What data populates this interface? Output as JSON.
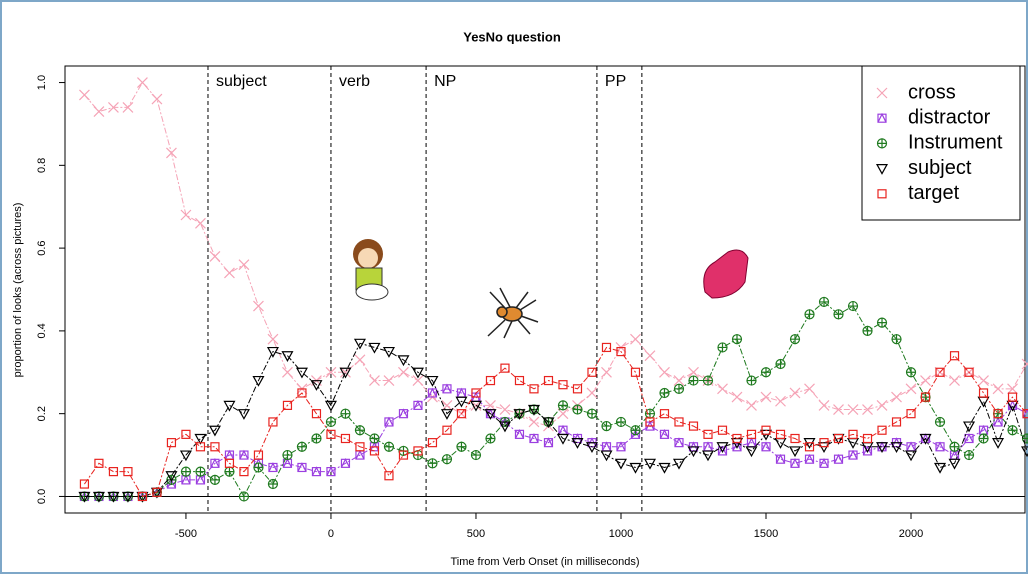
{
  "chart_data": {
    "type": "line",
    "title": "YesNo question",
    "x_label": "Time from Verb Onset (in milliseconds)",
    "y_label": "proportion of looks (across pictures)",
    "xlim": [
      -917,
      2393
    ],
    "ylim": [
      -0.04,
      1.04
    ],
    "xticks": [
      -500,
      0,
      500,
      1000,
      1500,
      2000
    ],
    "yticks": [
      {
        "value": 0,
        "label": "0.0"
      },
      0.2,
      0.4,
      0.6,
      0.8,
      {
        "value": 1,
        "label": "1.0"
      }
    ],
    "legend": "top-right",
    "segments": [
      {
        "label": "subject",
        "start": -424
      },
      {
        "label": "verb",
        "start": 0
      },
      {
        "label": "NP",
        "start": 328
      },
      {
        "label": "PP",
        "start": 917,
        "end": 1072
      }
    ],
    "x": [
      -850,
      -800,
      -750,
      -700,
      -650,
      -600,
      -550,
      -500,
      -450,
      -400,
      -350,
      -300,
      -250,
      -200,
      -150,
      -100,
      -50,
      0,
      50,
      100,
      150,
      200,
      250,
      300,
      350,
      400,
      450,
      500,
      550,
      600,
      650,
      700,
      750,
      800,
      850,
      900,
      950,
      1000,
      1050,
      1100,
      1150,
      1200,
      1250,
      1300,
      1350,
      1400,
      1450,
      1500,
      1550,
      1600,
      1650,
      1700,
      1750,
      1800,
      1850,
      1900,
      1950,
      2000,
      2050,
      2100,
      2150,
      2200,
      2250,
      2300,
      2350,
      2400
    ],
    "series": [
      {
        "name": "cross",
        "color": "#f5a3b6",
        "marker": "x",
        "values": [
          0.97,
          0.93,
          0.94,
          0.94,
          1.0,
          0.96,
          0.83,
          0.68,
          0.66,
          0.58,
          0.54,
          0.56,
          0.46,
          0.38,
          0.3,
          0.26,
          0.28,
          0.3,
          0.3,
          0.33,
          0.28,
          0.28,
          0.3,
          0.28,
          0.24,
          0.22,
          0.2,
          0.22,
          0.22,
          0.21,
          0.2,
          0.18,
          0.17,
          0.2,
          0.22,
          0.25,
          0.3,
          0.36,
          0.38,
          0.34,
          0.3,
          0.28,
          0.3,
          0.28,
          0.26,
          0.24,
          0.22,
          0.24,
          0.23,
          0.25,
          0.26,
          0.22,
          0.21,
          0.21,
          0.21,
          0.22,
          0.24,
          0.26,
          0.28,
          0.3,
          0.28,
          0.3,
          0.28,
          0.26,
          0.26,
          0.32
        ]
      },
      {
        "name": "distractor",
        "color": "#9b3fe0",
        "marker": "boxtri",
        "values": [
          0,
          0,
          0,
          0,
          0,
          0.01,
          0.03,
          0.04,
          0.04,
          0.08,
          0.1,
          0.1,
          0.08,
          0.07,
          0.08,
          0.07,
          0.06,
          0.06,
          0.08,
          0.1,
          0.12,
          0.18,
          0.2,
          0.22,
          0.25,
          0.26,
          0.25,
          0.24,
          0.2,
          0.18,
          0.15,
          0.14,
          0.13,
          0.16,
          0.14,
          0.13,
          0.12,
          0.12,
          0.15,
          0.17,
          0.15,
          0.13,
          0.12,
          0.12,
          0.11,
          0.12,
          0.13,
          0.12,
          0.09,
          0.08,
          0.09,
          0.08,
          0.09,
          0.1,
          0.11,
          0.12,
          0.13,
          0.12,
          0.14,
          0.12,
          0.1,
          0.14,
          0.16,
          0.18,
          0.22,
          0.2
        ]
      },
      {
        "name": "Instrument",
        "color": "#1f7a1f",
        "marker": "circplus",
        "values": [
          0,
          0,
          0,
          0,
          0,
          0.01,
          0.04,
          0.06,
          0.06,
          0.04,
          0.06,
          0,
          0.07,
          0.03,
          0.1,
          0.12,
          0.14,
          0.18,
          0.2,
          0.16,
          0.14,
          0.12,
          0.11,
          0.1,
          0.08,
          0.09,
          0.12,
          0.1,
          0.14,
          0.18,
          0.2,
          0.21,
          0.18,
          0.22,
          0.21,
          0.2,
          0.17,
          0.18,
          0.16,
          0.2,
          0.25,
          0.26,
          0.28,
          0.28,
          0.36,
          0.38,
          0.28,
          0.3,
          0.32,
          0.38,
          0.44,
          0.47,
          0.44,
          0.46,
          0.4,
          0.42,
          0.38,
          0.3,
          0.24,
          0.18,
          0.12,
          0.1,
          0.14,
          0.2,
          0.16,
          0.14
        ]
      },
      {
        "name": "subject",
        "color": "#000000",
        "marker": "tridown",
        "values": [
          0,
          0,
          0,
          0,
          0,
          0.01,
          0.05,
          0.1,
          0.14,
          0.16,
          0.22,
          0.2,
          0.28,
          0.35,
          0.34,
          0.3,
          0.27,
          0.22,
          0.3,
          0.37,
          0.36,
          0.35,
          0.33,
          0.3,
          0.28,
          0.2,
          0.23,
          0.22,
          0.2,
          0.17,
          0.2,
          0.21,
          0.18,
          0.14,
          0.13,
          0.12,
          0.1,
          0.08,
          0.07,
          0.08,
          0.07,
          0.08,
          0.11,
          0.1,
          0.12,
          0.13,
          0.11,
          0.15,
          0.13,
          0.11,
          0.13,
          0.12,
          0.14,
          0.13,
          0.12,
          0.12,
          0.12,
          0.1,
          0.14,
          0.07,
          0.08,
          0.17,
          0.23,
          0.13,
          0.22,
          0.11
        ]
      },
      {
        "name": "target",
        "color": "#e8231f",
        "marker": "box",
        "values": [
          0.03,
          0.08,
          0.06,
          0.06,
          0,
          0.01,
          0.13,
          0.15,
          0.12,
          0.12,
          0.08,
          0.06,
          0.1,
          0.18,
          0.22,
          0.25,
          0.2,
          0.15,
          0.14,
          0.12,
          0.11,
          0.05,
          0.1,
          0.11,
          0.13,
          0.16,
          0.2,
          0.25,
          0.28,
          0.31,
          0.28,
          0.26,
          0.28,
          0.27,
          0.26,
          0.3,
          0.36,
          0.35,
          0.3,
          0.18,
          0.2,
          0.18,
          0.17,
          0.15,
          0.16,
          0.14,
          0.15,
          0.16,
          0.15,
          0.14,
          0.12,
          0.13,
          0.14,
          0.15,
          0.14,
          0.16,
          0.18,
          0.2,
          0.24,
          0.3,
          0.34,
          0.3,
          0.25,
          0.2,
          0.24,
          0.2
        ]
      }
    ]
  }
}
